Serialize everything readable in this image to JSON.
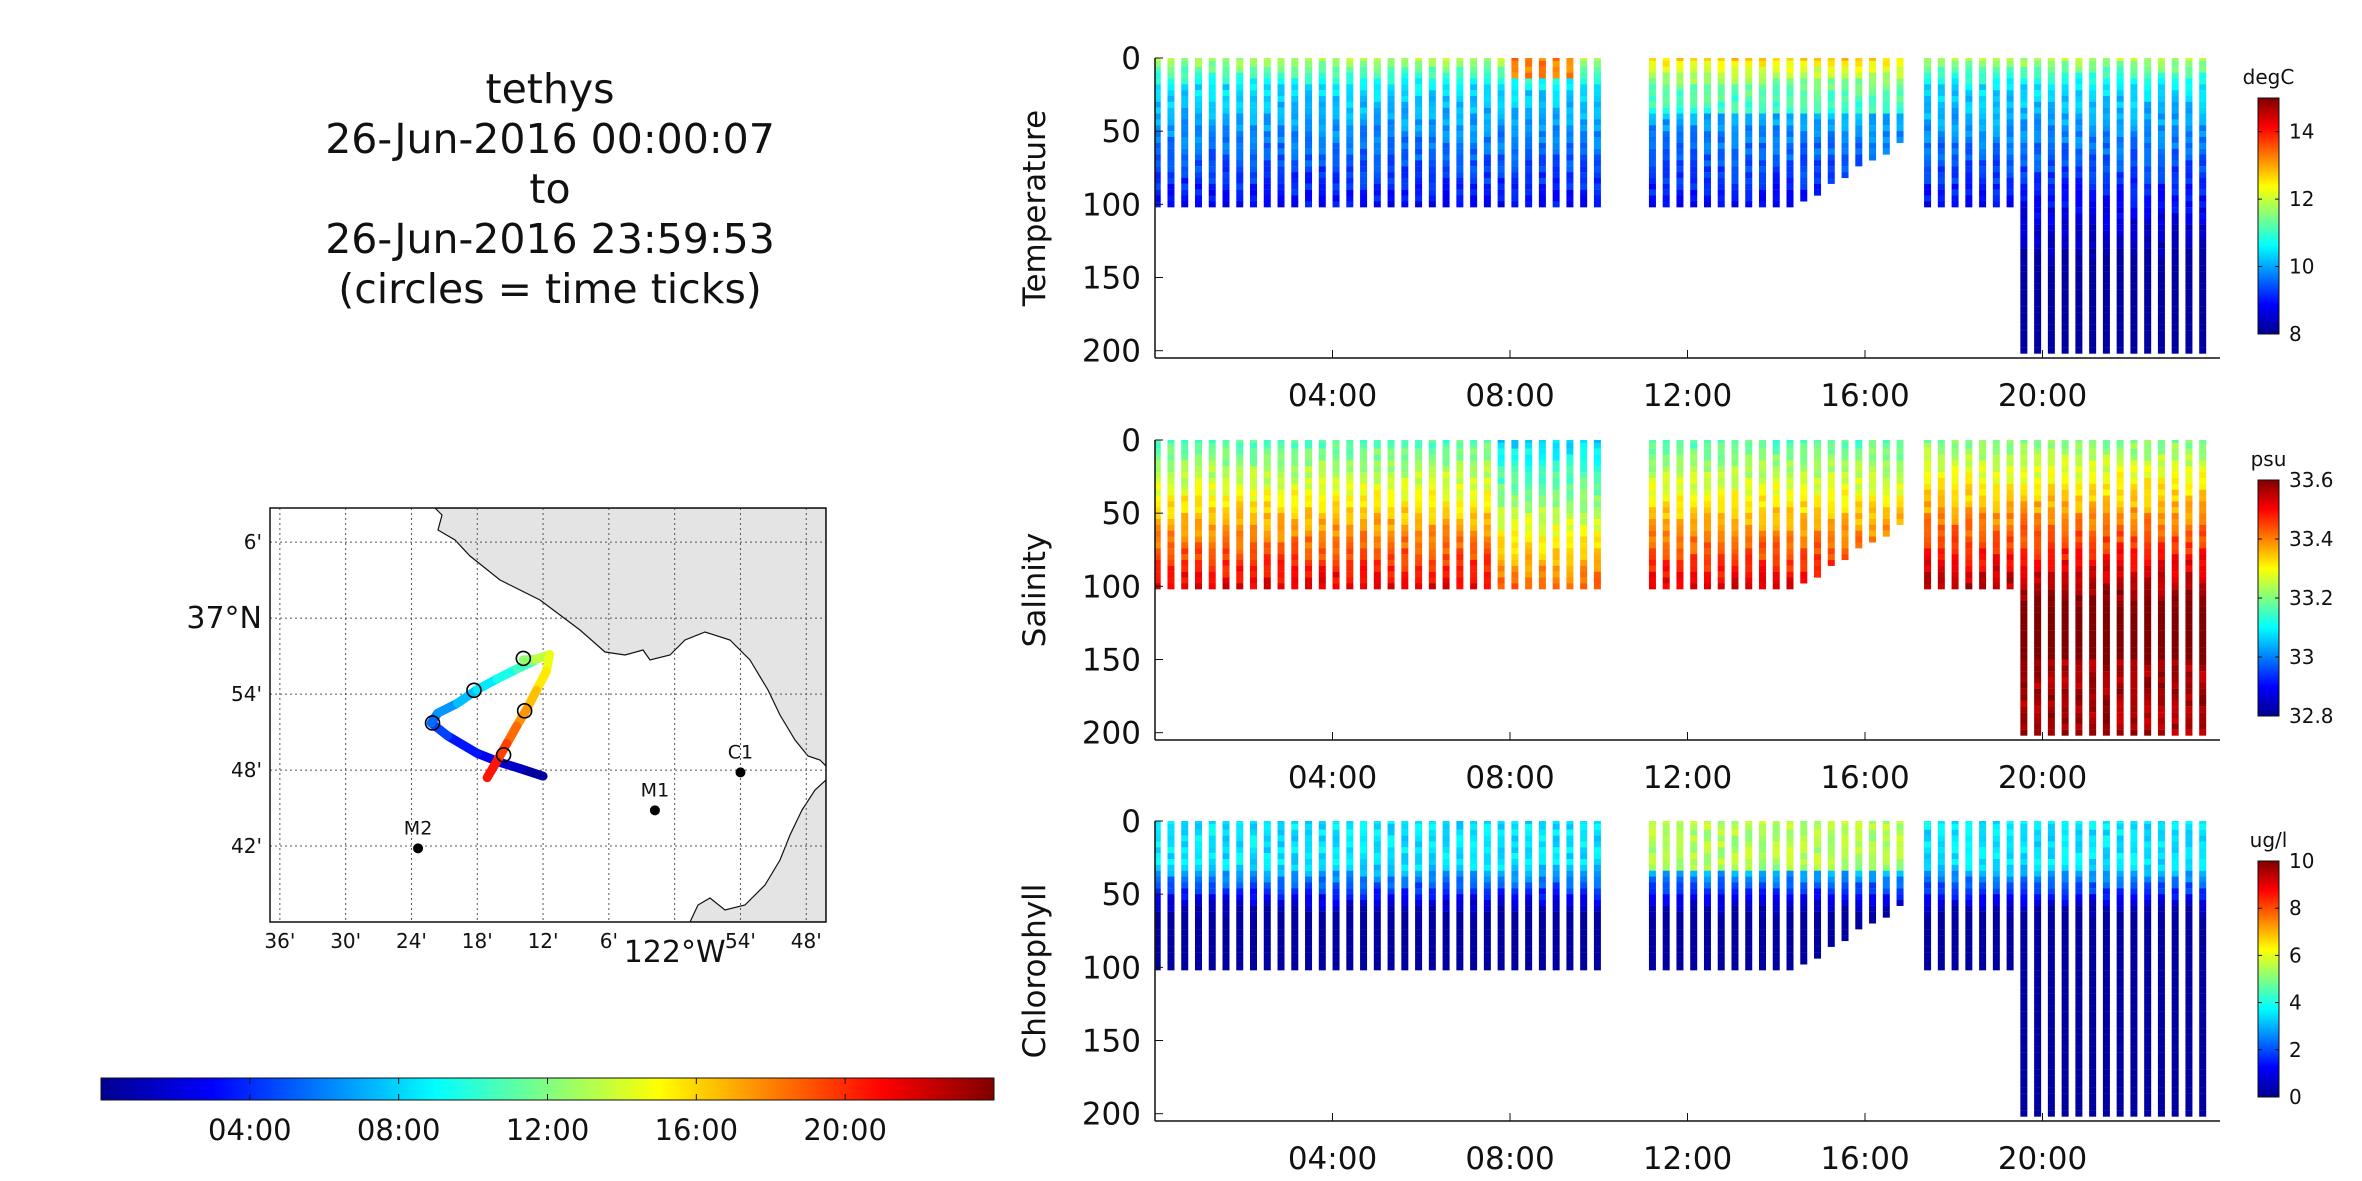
{
  "header": {
    "vehicle": "tethys",
    "start": "26-Jun-2016 00:00:07",
    "to": "to",
    "end": "26-Jun-2016 23:59:53",
    "note": "(circles = time ticks)"
  },
  "colormap": [
    "#00008f",
    "#0000ff",
    "#0080ff",
    "#00ffff",
    "#80ff80",
    "#ffff00",
    "#ff8000",
    "#ff0000",
    "#800000"
  ],
  "time_colorbar": {
    "ticks": [
      4,
      8,
      12,
      16,
      20
    ],
    "tick_labels": [
      "04:00",
      "08:00",
      "12:00",
      "16:00",
      "20:00"
    ],
    "range_hours": [
      0,
      24
    ]
  },
  "map": {
    "lat_labels": [
      "6'",
      "37°N",
      "54'",
      "48'",
      "42'"
    ],
    "lon_labels": [
      "36'",
      "30'",
      "24'",
      "18'",
      "12'",
      "6'",
      "122°W",
      "54'",
      "48'"
    ],
    "stations": [
      {
        "name": "C1",
        "lon": -121.9,
        "lat": 36.797
      },
      {
        "name": "M1",
        "lon": -122.03,
        "lat": 36.747
      },
      {
        "name": "M2",
        "lon": -122.39,
        "lat": 36.697
      }
    ],
    "track": [
      {
        "t": 0.0,
        "lon": -122.2,
        "lat": 36.792
      },
      {
        "t": 1.0,
        "lon": -122.235,
        "lat": 36.802
      },
      {
        "t": 2.0,
        "lon": -122.265,
        "lat": 36.81
      },
      {
        "t": 3.0,
        "lon": -122.3,
        "lat": 36.822
      },
      {
        "t": 4.0,
        "lon": -122.345,
        "lat": 36.845
      },
      {
        "t": 5.0,
        "lon": -122.37,
        "lat": 36.862
      },
      {
        "t": 6.0,
        "lon": -122.36,
        "lat": 36.875
      },
      {
        "t": 7.0,
        "lon": -122.33,
        "lat": 36.888
      },
      {
        "t": 8.0,
        "lon": -122.3,
        "lat": 36.906
      },
      {
        "t": 9.0,
        "lon": -122.27,
        "lat": 36.92
      },
      {
        "t": 10.0,
        "lon": -122.24,
        "lat": 36.933
      },
      {
        "t": 11.0,
        "lon": -122.215,
        "lat": 36.943
      },
      {
        "t": 12.0,
        "lon": -122.23,
        "lat": 36.945
      },
      {
        "t": 13.0,
        "lon": -122.21,
        "lat": 36.946
      },
      {
        "t": 14.0,
        "lon": -122.19,
        "lat": 36.952
      },
      {
        "t": 15.0,
        "lon": -122.195,
        "lat": 36.93
      },
      {
        "t": 16.0,
        "lon": -122.21,
        "lat": 36.905
      },
      {
        "t": 17.0,
        "lon": -122.225,
        "lat": 36.88
      },
      {
        "t": 18.0,
        "lon": -122.24,
        "lat": 36.858
      },
      {
        "t": 19.0,
        "lon": -122.255,
        "lat": 36.835
      },
      {
        "t": 20.0,
        "lon": -122.27,
        "lat": 36.812
      },
      {
        "t": 21.0,
        "lon": -122.285,
        "lat": 36.79
      }
    ],
    "time_tick_circles": [
      {
        "lon": -122.26,
        "lat": 36.82
      },
      {
        "lon": -122.368,
        "lat": 36.862
      },
      {
        "lon": -122.305,
        "lat": 36.905
      },
      {
        "lon": -122.23,
        "lat": 36.947
      },
      {
        "lon": -122.228,
        "lat": 36.878
      }
    ]
  },
  "chart_data": [
    {
      "type": "scatter",
      "variable": "temperature",
      "ylabel": "Temperature",
      "unit": "degC",
      "y_ticks": [
        0,
        50,
        100,
        150,
        200
      ],
      "ylim": [
        205,
        0
      ],
      "x_ticks": [
        4,
        8,
        12,
        16,
        20
      ],
      "x_tick_labels": [
        "04:00",
        "08:00",
        "12:00",
        "16:00",
        "20:00"
      ],
      "xlim": [
        0,
        24
      ],
      "colorbar_ticks": [
        8,
        10,
        12,
        14
      ],
      "clim": [
        8,
        15
      ]
    },
    {
      "type": "scatter",
      "variable": "salinity",
      "ylabel": "Salinity",
      "unit": "psu",
      "y_ticks": [
        0,
        50,
        100,
        150,
        200
      ],
      "ylim": [
        205,
        0
      ],
      "x_ticks": [
        4,
        8,
        12,
        16,
        20
      ],
      "x_tick_labels": [
        "04:00",
        "08:00",
        "12:00",
        "16:00",
        "20:00"
      ],
      "xlim": [
        0,
        24
      ],
      "colorbar_ticks": [
        32.8,
        33,
        33.2,
        33.4,
        33.6
      ],
      "colorbar_tick_labels": [
        "32.8",
        "33",
        "33.2",
        "33.4",
        "33.6"
      ],
      "clim": [
        32.8,
        33.6
      ]
    },
    {
      "type": "scatter",
      "variable": "chlorophyll",
      "ylabel": "Chlorophyll",
      "unit": "ug/l",
      "y_ticks": [
        0,
        50,
        100,
        150,
        200
      ],
      "ylim": [
        205,
        0
      ],
      "x_ticks": [
        4,
        8,
        12,
        16,
        20
      ],
      "x_tick_labels": [
        "04:00",
        "08:00",
        "12:00",
        "16:00",
        "20:00"
      ],
      "xlim": [
        0,
        24
      ],
      "colorbar_ticks": [
        0,
        2,
        4,
        6,
        8,
        10
      ],
      "clim": [
        0,
        10
      ]
    }
  ]
}
